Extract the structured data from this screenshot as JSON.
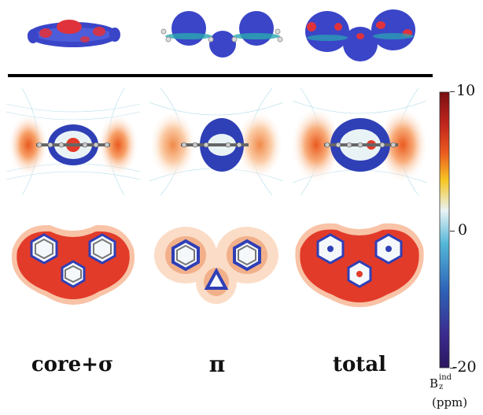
{
  "columns": [
    {
      "label": "core+σ"
    },
    {
      "label": "π"
    },
    {
      "label": "total"
    }
  ],
  "colorbar": {
    "max_label": "10",
    "mid_label": "0",
    "min_label": "-20",
    "quantity": "B",
    "quantity_sub": "z",
    "quantity_sup": "ind",
    "unit": "(ppm)",
    "stops": [
      "#7a0f12",
      "#c3261c",
      "#ea5a1f",
      "#f6c623",
      "#e9f3f6",
      "#54b7d8",
      "#2d62b6",
      "#3b2b8e",
      "#2c155f"
    ]
  },
  "colors": {
    "positive_orbital": "#3a45c8",
    "negative_orbital": "#e0323d",
    "shielding": "#2f3fb6",
    "deshielding": "#e23b2a",
    "carbon": "#777777",
    "hydrogen": "#eeeeee"
  }
}
